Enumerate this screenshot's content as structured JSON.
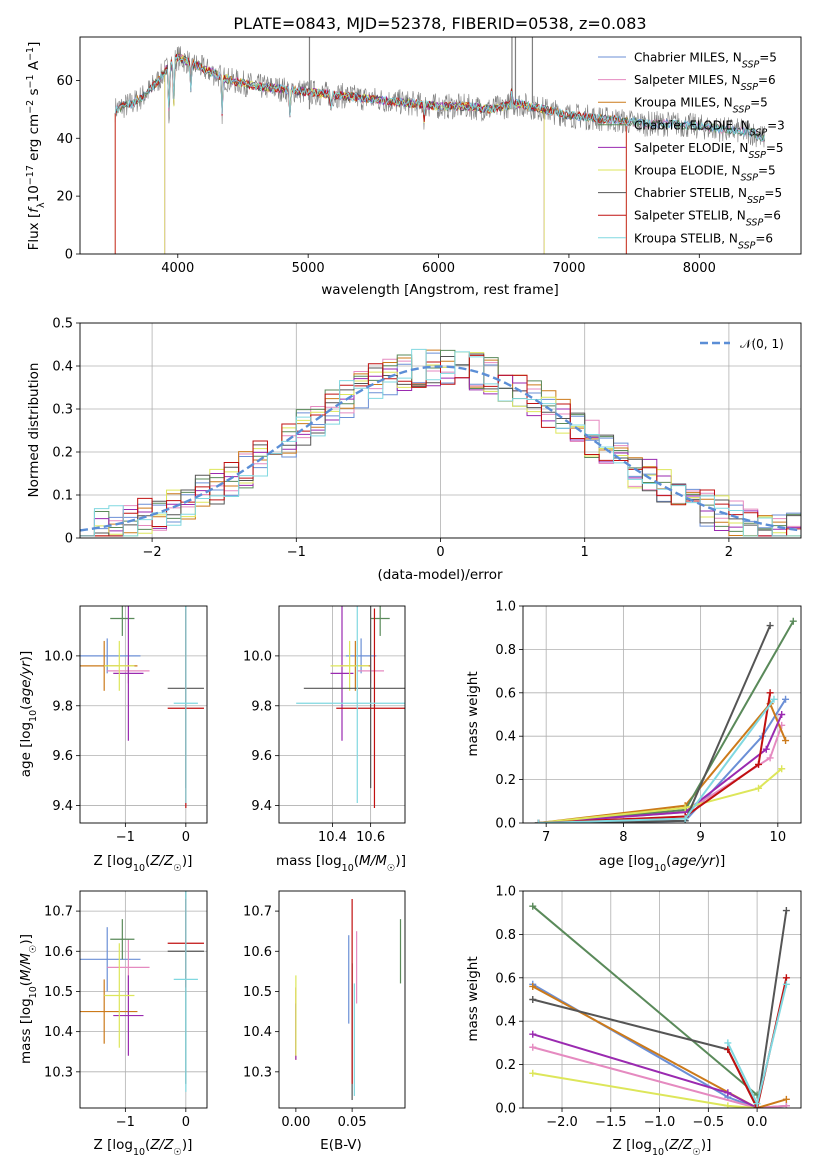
{
  "title": "PLATE=0843, MJD=52378, FIBERID=0538, z=0.083",
  "colors": {
    "ChabrierMILES": "#6b8fd6",
    "SalpeterMILES": "#e58ac0",
    "KroupaMILES": "#cc7a1a",
    "ChabrierELODIE": "#5a8a5a",
    "SalpeterELODIE": "#9a2ab0",
    "KroupaELODIE": "#dde65a",
    "ChabrierSTELIB": "#555555",
    "SalpeterSTELIB": "#c01010",
    "KroupaSTELIB": "#80d8e0",
    "normal": "#5b8ed6",
    "data": "#7f7f7f"
  },
  "chart_data": [
    {
      "panel": "spectrum",
      "type": "line",
      "xlabel": "wavelength [Angstrom, rest frame]",
      "ylabel": "Flux [f_λ 10^-17 erg cm^-2 s^-1 A^-1]",
      "xlim": [
        3250,
        8780
      ],
      "ylim": [
        0,
        75
      ],
      "xticks": [
        4000,
        5000,
        6000,
        7000,
        8000
      ],
      "yticks": [
        0,
        20,
        40,
        60
      ],
      "grid": false,
      "legend_position": "top-right",
      "legend": [
        {
          "key": "ChabrierMILES",
          "label": "Chabrier MILES, N",
          "sub": "SSP",
          "tail": "=5"
        },
        {
          "key": "SalpeterMILES",
          "label": "Salpeter MILES, N",
          "sub": "SSP",
          "tail": "=6"
        },
        {
          "key": "KroupaMILES",
          "label": "Kroupa MILES, N",
          "sub": "SSP",
          "tail": "=5"
        },
        {
          "key": "ChabrierELODIE",
          "label": "Chabrier ELODIE, N",
          "sub": "SSP",
          "tail": "=3"
        },
        {
          "key": "SalpeterELODIE",
          "label": "Salpeter ELODIE, N",
          "sub": "SSP",
          "tail": "=5"
        },
        {
          "key": "KroupaELODIE",
          "label": "Kroupa ELODIE, N",
          "sub": "SSP",
          "tail": "=5"
        },
        {
          "key": "ChabrierSTELIB",
          "label": "Chabrier STELIB, N",
          "sub": "SSP",
          "tail": "=5"
        },
        {
          "key": "SalpeterSTELIB",
          "label": "Salpeter STELIB, N",
          "sub": "SSP",
          "tail": "=6"
        },
        {
          "key": "KroupaSTELIB",
          "label": "Kroupa STELIB, N",
          "sub": "SSP",
          "tail": "=6"
        }
      ],
      "continuum": [
        [
          3520,
          50
        ],
        [
          3650,
          52
        ],
        [
          3750,
          55
        ],
        [
          3850,
          60
        ],
        [
          3950,
          66
        ],
        [
          4000,
          68
        ],
        [
          4100,
          66
        ],
        [
          4200,
          64
        ],
        [
          4300,
          62
        ],
        [
          4400,
          60
        ],
        [
          4500,
          59
        ],
        [
          4600,
          58
        ],
        [
          4800,
          57
        ],
        [
          5000,
          56
        ],
        [
          5200,
          55
        ],
        [
          5400,
          54
        ],
        [
          5600,
          53
        ],
        [
          5800,
          52
        ],
        [
          6000,
          51
        ],
        [
          6200,
          51
        ],
        [
          6400,
          50
        ],
        [
          6600,
          52
        ],
        [
          6800,
          50
        ],
        [
          7000,
          48
        ],
        [
          7200,
          47
        ],
        [
          7400,
          46
        ],
        [
          7600,
          45
        ],
        [
          7800,
          45
        ],
        [
          8000,
          44
        ],
        [
          8200,
          43
        ],
        [
          8400,
          42
        ],
        [
          8500,
          40
        ]
      ],
      "model_cutoffs": [
        {
          "key": "SalpeterSTELIB",
          "lo": 3520,
          "hi": 7440
        },
        {
          "key": "KroupaELODIE",
          "lo": 3900,
          "hi": 6810
        },
        {
          "key": "SalpeterELODIE",
          "lo": 3900,
          "hi": 6810
        },
        {
          "key": "KroupaMILES",
          "lo": 3520,
          "hi": 7440
        }
      ]
    },
    {
      "panel": "residuals",
      "type": "line",
      "xlabel": "(data-model)/error",
      "ylabel": "Normed distribution",
      "xlim": [
        -2.5,
        2.5
      ],
      "ylim": [
        0,
        0.5
      ],
      "xticks": [
        -2,
        -1,
        0,
        1,
        2
      ],
      "yticks": [
        0.0,
        0.1,
        0.2,
        0.3,
        0.4,
        0.5
      ],
      "grid": true,
      "legend": "𝒩(0, 1)",
      "legend_position": "top-right",
      "bin_width": 0.1
    },
    {
      "panel": "age_vs_Z",
      "type": "scatter",
      "xlabel": "Z [log10(Z/Z☉)]",
      "ylabel": "age  [log10(age/yr)]",
      "xlim": [
        -1.75,
        0.35
      ],
      "ylim": [
        9.33,
        10.2
      ],
      "xticks": [
        -1,
        0
      ],
      "yticks": [
        9.4,
        9.6,
        9.8,
        10.0
      ],
      "grid": true,
      "points": [
        {
          "key": "ChabrierMILES",
          "x": -1.3,
          "y": 10.0,
          "xerr": 0.55,
          "yerr": 0.07
        },
        {
          "key": "SalpeterMILES",
          "x": -0.95,
          "y": 9.94,
          "xerr": 0.35,
          "yerr": 0.05
        },
        {
          "key": "KroupaMILES",
          "x": -1.35,
          "y": 9.96,
          "xerr": 0.55,
          "yerr": 0.1
        },
        {
          "key": "ChabrierELODIE",
          "x": -1.05,
          "y": 10.15,
          "xerr": 0.2,
          "yerr": 0.07
        },
        {
          "key": "SalpeterELODIE",
          "x": -0.95,
          "y": 9.93,
          "xerr": 0.25,
          "yerr": 0.27
        },
        {
          "key": "KroupaELODIE",
          "x": -1.1,
          "y": 9.96,
          "xerr": 0.25,
          "yerr": 0.1
        },
        {
          "key": "ChabrierSTELIB",
          "x": 0.0,
          "y": 9.87,
          "xerr": 0.3,
          "yerr": 0.4
        },
        {
          "key": "SalpeterSTELIB",
          "x": 0.0,
          "y": 9.79,
          "xerr": 0.3,
          "yerr": 0.4
        },
        {
          "key": "KroupaSTELIB",
          "x": 0.0,
          "y": 9.81,
          "xerr": 0.2,
          "yerr": 0.4
        }
      ]
    },
    {
      "panel": "age_vs_mass",
      "type": "scatter",
      "xlabel": "mass [log10(M/M☉)]",
      "ylabel": "",
      "xlim": [
        10.12,
        10.78
      ],
      "ylim": [
        9.33,
        10.2
      ],
      "xticks": [
        10.4,
        10.6
      ],
      "yticks": [
        9.4,
        9.6,
        9.8,
        10.0
      ],
      "grid": true,
      "points": [
        {
          "key": "ChabrierMILES",
          "x": 10.55,
          "y": 10.0,
          "xerr": 0.08,
          "yerr": 0.07
        },
        {
          "key": "SalpeterMILES",
          "x": 10.6,
          "y": 9.94,
          "xerr": 0.07,
          "yerr": 0.05
        },
        {
          "key": "KroupaMILES",
          "x": 10.52,
          "y": 9.96,
          "xerr": 0.08,
          "yerr": 0.1
        },
        {
          "key": "ChabrierELODIE",
          "x": 10.65,
          "y": 10.15,
          "xerr": 0.05,
          "yerr": 0.07
        },
        {
          "key": "SalpeterELODIE",
          "x": 10.45,
          "y": 9.93,
          "xerr": 0.06,
          "yerr": 0.27
        },
        {
          "key": "KroupaELODIE",
          "x": 10.49,
          "y": 9.96,
          "xerr": 0.1,
          "yerr": 0.1
        },
        {
          "key": "ChabrierSTELIB",
          "x": 10.6,
          "y": 9.87,
          "xerr": 0.35,
          "yerr": 0.4
        },
        {
          "key": "SalpeterSTELIB",
          "x": 10.62,
          "y": 9.79,
          "xerr": 0.2,
          "yerr": 0.4
        },
        {
          "key": "KroupaSTELIB",
          "x": 10.53,
          "y": 9.81,
          "xerr": 0.32,
          "yerr": 0.4
        }
      ]
    },
    {
      "panel": "weight_vs_age",
      "type": "line",
      "xlabel": "age  [log10(age/yr)]",
      "ylabel": "mass weight",
      "xlim": [
        6.7,
        10.3
      ],
      "ylim": [
        0,
        1.0
      ],
      "xticks": [
        7,
        8,
        9,
        10
      ],
      "yticks": [
        0.0,
        0.2,
        0.4,
        0.6,
        0.8,
        1.0
      ],
      "grid": true,
      "series": [
        {
          "key": "ChabrierMILES",
          "x": [
            6.9,
            8.8,
            9.8,
            10.1
          ],
          "y": [
            0.0,
            0.01,
            0.4,
            0.57
          ]
        },
        {
          "key": "SalpeterMILES",
          "x": [
            6.9,
            8.8,
            9.9,
            10.05
          ],
          "y": [
            0.0,
            0.05,
            0.3,
            0.45
          ]
        },
        {
          "key": "KroupaMILES",
          "x": [
            6.9,
            8.8,
            9.9,
            10.1
          ],
          "y": [
            0.0,
            0.08,
            0.55,
            0.38
          ]
        },
        {
          "key": "ChabrierELODIE",
          "x": [
            6.9,
            8.8,
            10.2
          ],
          "y": [
            0.0,
            0.06,
            0.93
          ]
        },
        {
          "key": "SalpeterELODIE",
          "x": [
            6.9,
            8.8,
            9.85,
            10.05
          ],
          "y": [
            0.0,
            0.05,
            0.34,
            0.5
          ]
        },
        {
          "key": "KroupaELODIE",
          "x": [
            6.9,
            8.8,
            9.75,
            10.05
          ],
          "y": [
            0.0,
            0.07,
            0.16,
            0.25
          ]
        },
        {
          "key": "ChabrierSTELIB",
          "x": [
            6.9,
            8.8,
            9.9
          ],
          "y": [
            0.0,
            0.01,
            0.91
          ]
        },
        {
          "key": "SalpeterSTELIB",
          "x": [
            6.9,
            8.8,
            9.75,
            9.9
          ],
          "y": [
            0.0,
            0.03,
            0.27,
            0.6
          ]
        },
        {
          "key": "KroupaSTELIB",
          "x": [
            6.9,
            8.8,
            9.95
          ],
          "y": [
            0.0,
            0.02,
            0.57
          ]
        }
      ]
    },
    {
      "panel": "mass_vs_Z",
      "type": "scatter",
      "xlabel": "Z [log10(Z/Z☉)]",
      "ylabel": "mass [log10(M/M☉)]",
      "xlim": [
        -1.75,
        0.35
      ],
      "ylim": [
        10.21,
        10.75
      ],
      "xticks": [
        -1,
        0
      ],
      "yticks": [
        10.3,
        10.4,
        10.5,
        10.6,
        10.7
      ],
      "grid": true,
      "points": [
        {
          "key": "ChabrierMILES",
          "x": -1.3,
          "y": 10.58,
          "xerr": 0.55,
          "yerr": 0.08
        },
        {
          "key": "SalpeterMILES",
          "x": -0.95,
          "y": 10.56,
          "xerr": 0.35,
          "yerr": 0.07
        },
        {
          "key": "KroupaMILES",
          "x": -1.35,
          "y": 10.45,
          "xerr": 0.55,
          "yerr": 0.08
        },
        {
          "key": "ChabrierELODIE",
          "x": -1.05,
          "y": 10.63,
          "xerr": 0.2,
          "yerr": 0.05
        },
        {
          "key": "SalpeterELODIE",
          "x": -0.95,
          "y": 10.44,
          "xerr": 0.25,
          "yerr": 0.1
        },
        {
          "key": "KroupaELODIE",
          "x": -1.1,
          "y": 10.49,
          "xerr": 0.25,
          "yerr": 0.13
        },
        {
          "key": "ChabrierSTELIB",
          "x": 0.0,
          "y": 10.6,
          "xerr": 0.3,
          "yerr": 0.33
        },
        {
          "key": "SalpeterSTELIB",
          "x": 0.0,
          "y": 10.62,
          "xerr": 0.3,
          "yerr": 0.11
        },
        {
          "key": "KroupaSTELIB",
          "x": 0.0,
          "y": 10.53,
          "xerr": 0.2,
          "yerr": 0.28
        }
      ]
    },
    {
      "panel": "mass_vs_ebv",
      "type": "scatter",
      "xlabel": "E(B-V)",
      "ylabel": "",
      "xlim": [
        -0.015,
        0.097
      ],
      "ylim": [
        10.21,
        10.75
      ],
      "xticks": [
        0.0,
        0.05
      ],
      "xtick_labels": [
        "0.00",
        "0.05"
      ],
      "yticks": [
        10.3,
        10.4,
        10.5,
        10.6,
        10.7
      ],
      "grid": false,
      "points": [
        {
          "key": "ChabrierMILES",
          "x": 0.047,
          "y": 10.53,
          "xerr": 0,
          "yerr": 0.11
        },
        {
          "key": "SalpeterMILES",
          "x": 0.054,
          "y": 10.56,
          "xerr": 0,
          "yerr": 0.09
        },
        {
          "key": "KroupaMILES",
          "x": 0.0,
          "y": 10.42,
          "xerr": 0,
          "yerr": 0.09
        },
        {
          "key": "ChabrierELODIE",
          "x": 0.093,
          "y": 10.6,
          "xerr": 0,
          "yerr": 0.08
        },
        {
          "key": "SalpeterELODIE",
          "x": 0.0,
          "y": 10.4,
          "xerr": 0,
          "yerr": 0.07
        },
        {
          "key": "KroupaELODIE",
          "x": 0.0,
          "y": 10.44,
          "xerr": 0,
          "yerr": 0.1
        },
        {
          "key": "ChabrierSTELIB",
          "x": 0.05,
          "y": 10.4,
          "xerr": 0,
          "yerr": 0.17
        },
        {
          "key": "SalpeterSTELIB",
          "x": 0.05,
          "y": 10.5,
          "xerr": 0,
          "yerr": 0.23
        },
        {
          "key": "KroupaSTELIB",
          "x": 0.052,
          "y": 10.38,
          "xerr": 0,
          "yerr": 0.14
        }
      ]
    },
    {
      "panel": "weight_vs_Z",
      "type": "line",
      "xlabel": "Z [log10(Z/Z☉)]",
      "ylabel": "mass weight",
      "xlim": [
        -2.4,
        0.45
      ],
      "ylim": [
        0,
        1.0
      ],
      "xticks": [
        -2.0,
        -1.5,
        -1.0,
        -0.5,
        0.0
      ],
      "xtick_labels": [
        "−2.0",
        "−1.5",
        "−1.0",
        "−0.5",
        "0.0"
      ],
      "yticks": [
        0.0,
        0.2,
        0.4,
        0.6,
        0.8,
        1.0
      ],
      "grid": true,
      "series": [
        {
          "key": "ChabrierMILES",
          "x": [
            -2.3,
            -0.3,
            0.0,
            0.3
          ],
          "y": [
            0.57,
            0.05,
            0.0,
            0.01
          ]
        },
        {
          "key": "SalpeterMILES",
          "x": [
            -2.3,
            0.0,
            0.3
          ],
          "y": [
            0.28,
            0.0,
            0.01
          ]
        },
        {
          "key": "KroupaMILES",
          "x": [
            -2.3,
            0.0,
            0.3
          ],
          "y": [
            0.56,
            0.0,
            0.04
          ]
        },
        {
          "key": "ChabrierELODIE",
          "x": [
            -2.3,
            0.0
          ],
          "y": [
            0.93,
            0.06
          ]
        },
        {
          "key": "SalpeterELODIE",
          "x": [
            -2.3,
            -0.3,
            0.0
          ],
          "y": [
            0.34,
            0.07,
            0.0
          ]
        },
        {
          "key": "KroupaELODIE",
          "x": [
            -2.3,
            -0.3,
            0.0
          ],
          "y": [
            0.16,
            0.01,
            0.0
          ]
        },
        {
          "key": "ChabrierSTELIB",
          "x": [
            -2.3,
            -0.3,
            0.0,
            0.3
          ],
          "y": [
            0.5,
            0.27,
            0.0,
            0.91
          ]
        },
        {
          "key": "SalpeterSTELIB",
          "x": [
            -0.3,
            0.0,
            0.3
          ],
          "y": [
            0.27,
            0.0,
            0.6
          ]
        },
        {
          "key": "KroupaSTELIB",
          "x": [
            -0.3,
            0.0,
            0.3
          ],
          "y": [
            0.3,
            0.02,
            0.57
          ]
        }
      ]
    }
  ]
}
